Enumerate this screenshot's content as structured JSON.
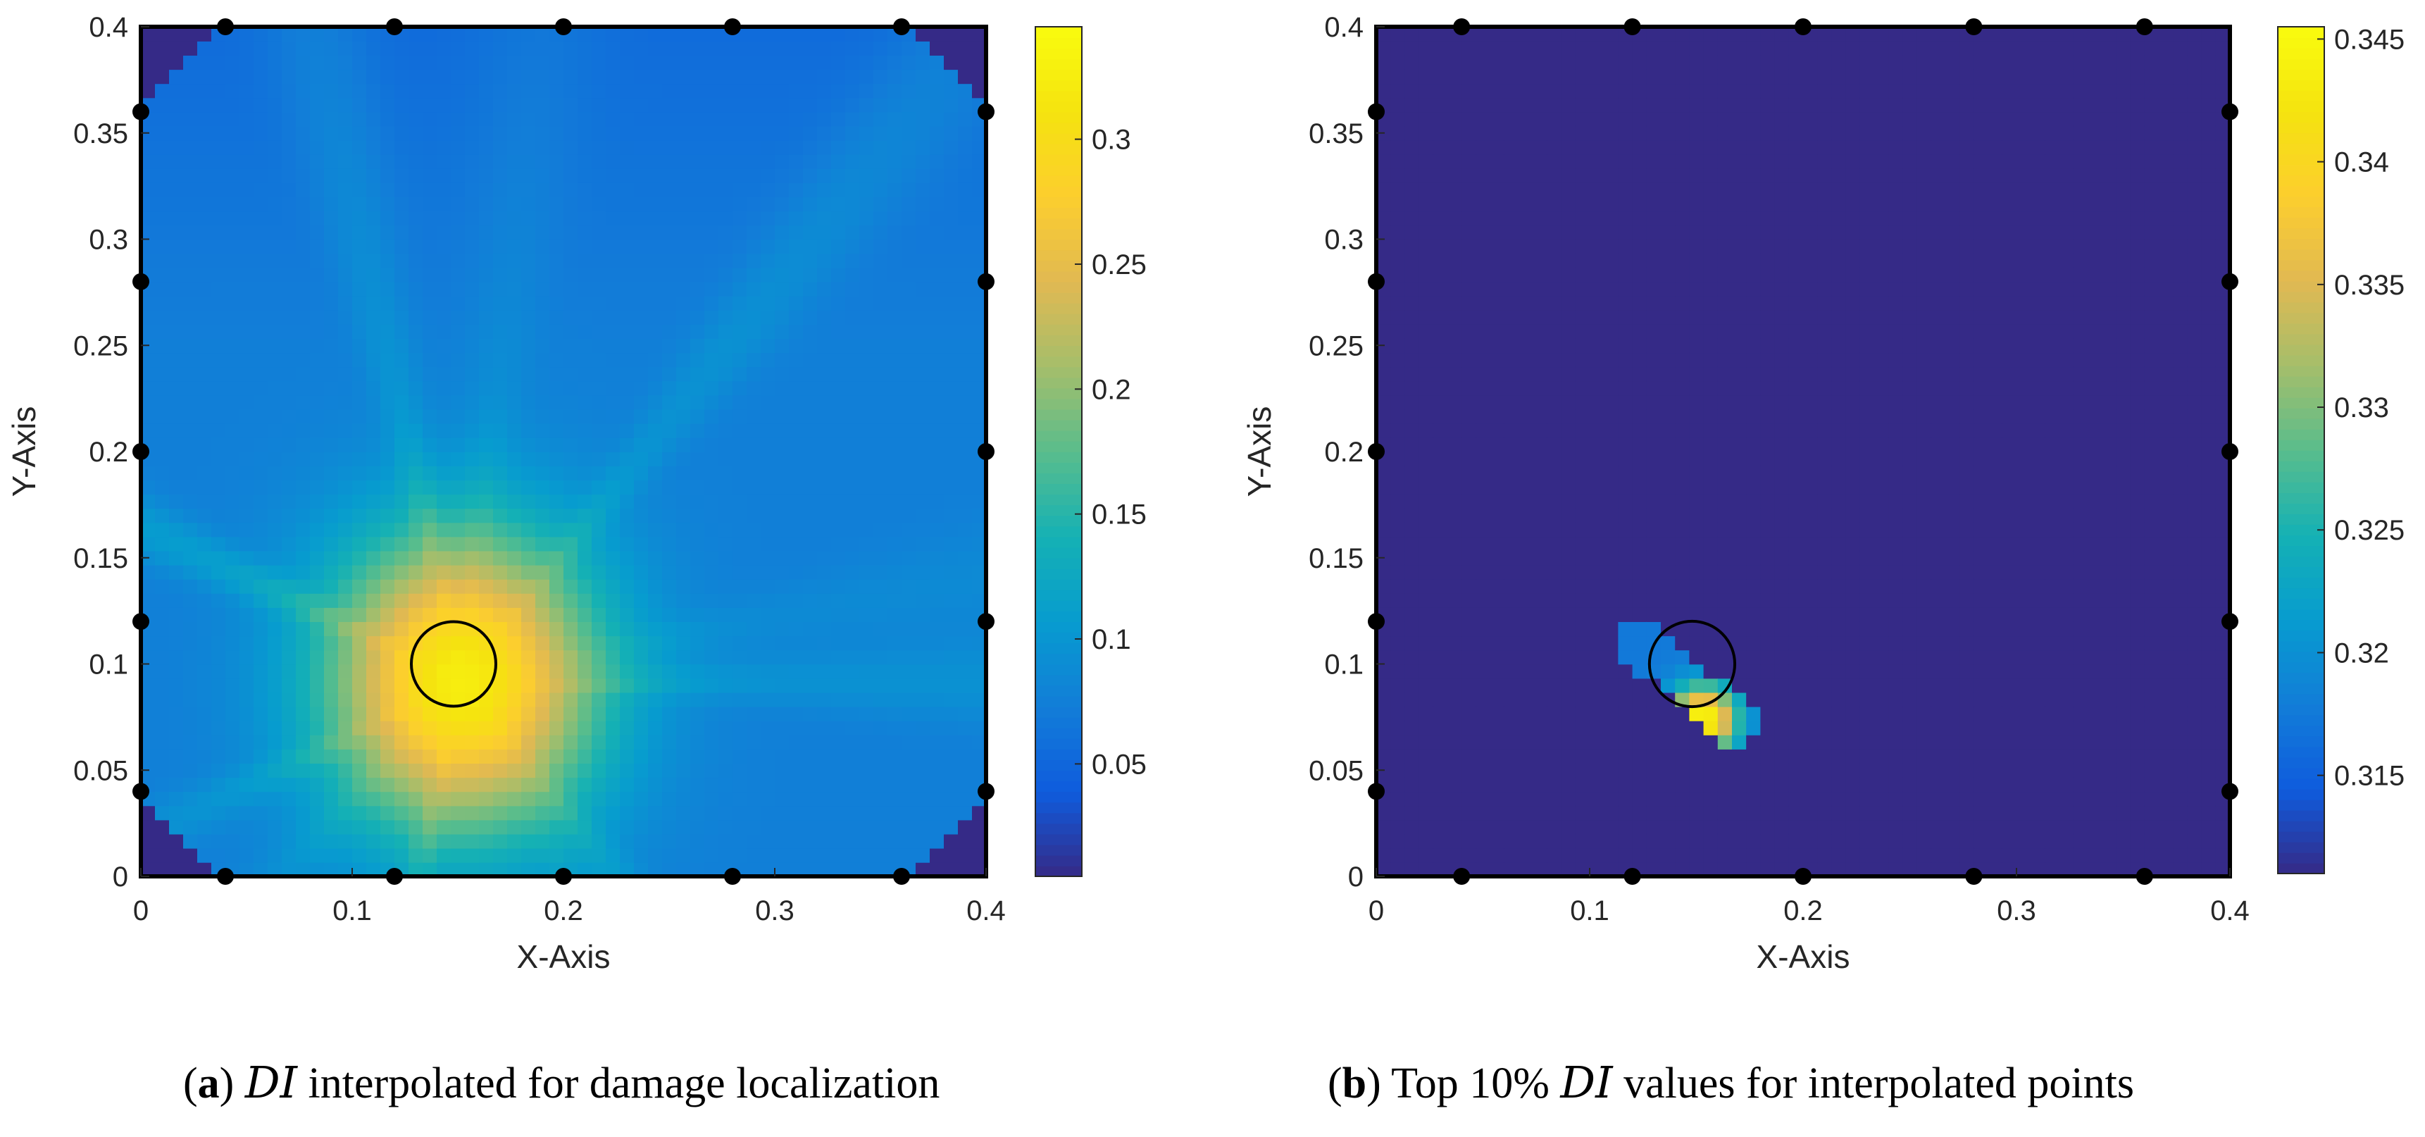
{
  "chart_data": [
    {
      "type": "heatmap",
      "panel_tag": "a",
      "caption_pre": "",
      "caption_di": "DI",
      "caption_post": " interpolated for damage localization",
      "xlabel": "X-Axis",
      "ylabel": "Y-Axis",
      "xlim": [
        0,
        0.4
      ],
      "ylim": [
        0,
        0.4
      ],
      "xticks": [
        0,
        0.1,
        0.2,
        0.3,
        0.4
      ],
      "xtick_labels": [
        "0",
        "0.1",
        "0.2",
        "0.3",
        "0.4"
      ],
      "yticks": [
        0,
        0.05,
        0.1,
        0.15,
        0.2,
        0.25,
        0.3,
        0.35,
        0.4
      ],
      "ytick_labels": [
        "0",
        "0.05",
        "0.1",
        "0.15",
        "0.2",
        "0.25",
        "0.3",
        "0.35",
        "0.4"
      ],
      "colorbar": {
        "min": 0.005,
        "max": 0.345,
        "ticks": [
          0.05,
          0.1,
          0.15,
          0.2,
          0.25,
          0.3
        ],
        "tick_labels": [
          "0.05",
          "0.1",
          "0.15",
          "0.2",
          "0.25",
          "0.3"
        ]
      },
      "damage_circle": {
        "x": 0.148,
        "y": 0.1,
        "r": 0.02
      },
      "sensors": [
        {
          "x": 0.04,
          "y": 0.4
        },
        {
          "x": 0.12,
          "y": 0.4
        },
        {
          "x": 0.2,
          "y": 0.4
        },
        {
          "x": 0.28,
          "y": 0.4
        },
        {
          "x": 0.36,
          "y": 0.4
        },
        {
          "x": 0.04,
          "y": 0.0
        },
        {
          "x": 0.12,
          "y": 0.0
        },
        {
          "x": 0.2,
          "y": 0.0
        },
        {
          "x": 0.28,
          "y": 0.0
        },
        {
          "x": 0.36,
          "y": 0.0
        },
        {
          "x": 0.0,
          "y": 0.04
        },
        {
          "x": 0.0,
          "y": 0.12
        },
        {
          "x": 0.0,
          "y": 0.2
        },
        {
          "x": 0.0,
          "y": 0.28
        },
        {
          "x": 0.0,
          "y": 0.36
        },
        {
          "x": 0.4,
          "y": 0.04
        },
        {
          "x": 0.4,
          "y": 0.12
        },
        {
          "x": 0.4,
          "y": 0.2
        },
        {
          "x": 0.4,
          "y": 0.28
        },
        {
          "x": 0.4,
          "y": 0.36
        }
      ],
      "field": {
        "background": 0.075,
        "corner_value": 0.005,
        "peak": {
          "x": 0.152,
          "y": 0.092,
          "value": 0.325,
          "sx": 0.045,
          "sy": 0.05
        }
      }
    },
    {
      "type": "heatmap",
      "panel_tag": "b",
      "caption_pre": " Top 10% ",
      "caption_di": "DI",
      "caption_post": " values for interpolated points",
      "xlabel": "X-Axis",
      "ylabel": "Y-Axis",
      "xlim": [
        0,
        0.4
      ],
      "ylim": [
        0,
        0.4
      ],
      "xticks": [
        0,
        0.1,
        0.2,
        0.3,
        0.4
      ],
      "xtick_labels": [
        "0",
        "0.1",
        "0.2",
        "0.3",
        "0.4"
      ],
      "yticks": [
        0,
        0.05,
        0.1,
        0.15,
        0.2,
        0.25,
        0.3,
        0.35,
        0.4
      ],
      "ytick_labels": [
        "0",
        "0.05",
        "0.1",
        "0.15",
        "0.2",
        "0.25",
        "0.3",
        "0.35",
        "0.4"
      ],
      "colorbar": {
        "min": 0.311,
        "max": 0.3455,
        "ticks": [
          0.315,
          0.32,
          0.325,
          0.33,
          0.335,
          0.34,
          0.345
        ],
        "tick_labels": [
          "0.315",
          "0.32",
          "0.325",
          "0.33",
          "0.335",
          "0.34",
          "0.345"
        ]
      },
      "damage_circle": {
        "x": 0.148,
        "y": 0.1,
        "r": 0.02
      },
      "sensors": [
        {
          "x": 0.04,
          "y": 0.4
        },
        {
          "x": 0.12,
          "y": 0.4
        },
        {
          "x": 0.2,
          "y": 0.4
        },
        {
          "x": 0.28,
          "y": 0.4
        },
        {
          "x": 0.36,
          "y": 0.4
        },
        {
          "x": 0.04,
          "y": 0.0
        },
        {
          "x": 0.12,
          "y": 0.0
        },
        {
          "x": 0.2,
          "y": 0.0
        },
        {
          "x": 0.28,
          "y": 0.0
        },
        {
          "x": 0.36,
          "y": 0.0
        },
        {
          "x": 0.0,
          "y": 0.04
        },
        {
          "x": 0.0,
          "y": 0.12
        },
        {
          "x": 0.0,
          "y": 0.2
        },
        {
          "x": 0.0,
          "y": 0.28
        },
        {
          "x": 0.0,
          "y": 0.36
        },
        {
          "x": 0.4,
          "y": 0.04
        },
        {
          "x": 0.4,
          "y": 0.12
        },
        {
          "x": 0.4,
          "y": 0.2
        },
        {
          "x": 0.4,
          "y": 0.28
        },
        {
          "x": 0.4,
          "y": 0.36
        }
      ],
      "field": {
        "background": 0.311,
        "region": {
          "x0": 0.122,
          "y0": 0.112,
          "x1": 0.168,
          "y1": 0.072,
          "half_width": 0.011
        },
        "peak": {
          "x": 0.153,
          "y": 0.074,
          "value": 0.3455
        }
      }
    }
  ]
}
